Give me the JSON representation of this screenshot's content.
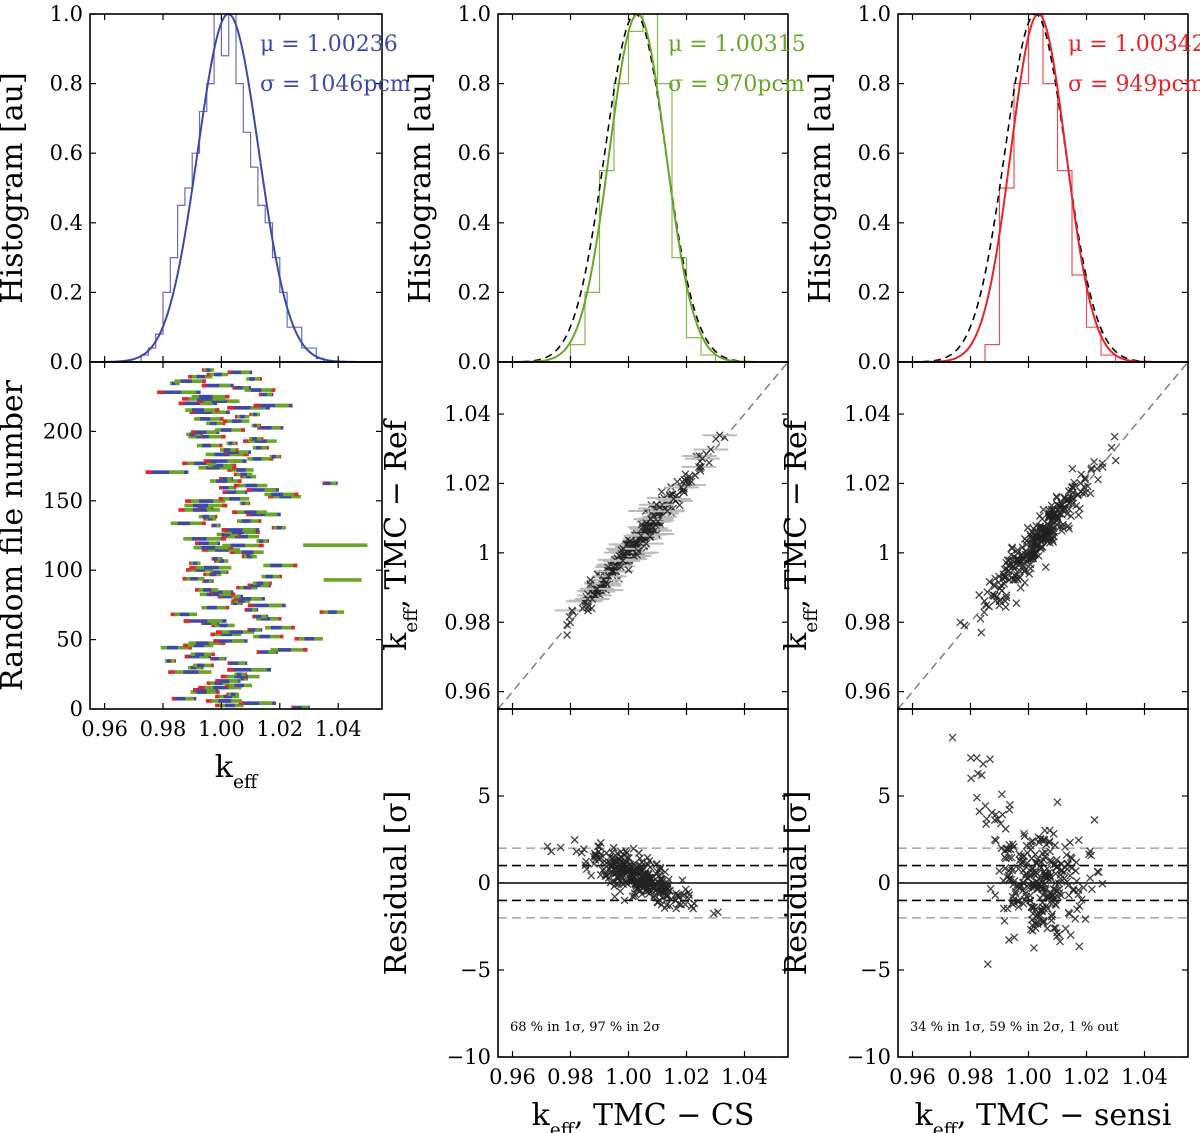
{
  "colors": {
    "blue": "#3f48a8",
    "green": "#6aa527",
    "red": "#e3242b",
    "black": "#000000",
    "grey": "#777777",
    "lightgrey": "#aaaaaa"
  },
  "chart_data": [
    {
      "id": "hist_ref",
      "type": "histogram+gaussian",
      "ylabel": "Histogram [au]",
      "ylim": [
        0,
        1
      ],
      "xlim": [
        0.955,
        1.055
      ],
      "yticks": [
        "0.0",
        "0.2",
        "0.4",
        "0.6",
        "0.8",
        "1.0"
      ],
      "mu_label": "μ = 1.00236",
      "sigma_label": "σ = 1046pcm",
      "mu": 1.00236,
      "sigma": 0.01046,
      "color": "blue",
      "reference_curve": false,
      "bin_edges": [
        0.9725,
        0.975,
        0.9775,
        0.98,
        0.9825,
        0.985,
        0.9875,
        0.99,
        0.9925,
        0.995,
        0.9975,
        1.0,
        1.0025,
        1.005,
        1.0075,
        1.01,
        1.0125,
        1.015,
        1.0175,
        1.02,
        1.0225,
        1.025,
        1.0275,
        1.03,
        1.0325,
        1.035
      ],
      "counts": [
        0.02,
        0.04,
        0.08,
        0.2,
        0.3,
        0.45,
        0.5,
        0.6,
        0.72,
        0.8,
        1.0,
        0.88,
        1.0,
        0.8,
        0.66,
        0.56,
        0.45,
        0.4,
        0.3,
        0.2,
        0.1,
        0.1,
        0.04,
        0.04,
        0.01
      ]
    },
    {
      "id": "hist_cs",
      "type": "histogram+gaussian",
      "ylabel": "Histogram [au]",
      "ylim": [
        0,
        1
      ],
      "xlim": [
        0.955,
        1.055
      ],
      "yticks": [
        "0.0",
        "0.2",
        "0.4",
        "0.6",
        "0.8",
        "1.0"
      ],
      "mu_label": "μ = 1.00315",
      "sigma_label": "σ = 970pcm",
      "mu": 1.00315,
      "sigma": 0.0097,
      "color": "green",
      "reference_curve": true,
      "bin_edges": [
        0.98,
        0.985,
        0.99,
        0.995,
        1.0,
        1.005,
        1.01,
        1.015,
        1.02,
        1.025,
        1.03,
        1.035
      ],
      "counts": [
        0.05,
        0.2,
        0.55,
        0.8,
        0.95,
        1.0,
        0.8,
        0.3,
        0.07,
        0.02,
        0.0
      ]
    },
    {
      "id": "hist_sensi",
      "type": "histogram+gaussian",
      "ylabel": "Histogram [au]",
      "ylim": [
        0,
        1
      ],
      "xlim": [
        0.955,
        1.055
      ],
      "yticks": [
        "0.0",
        "0.2",
        "0.4",
        "0.6",
        "0.8",
        "1.0"
      ],
      "mu_label": "μ = 1.00342",
      "sigma_label": "σ = 949pcm",
      "mu": 1.00342,
      "sigma": 0.00949,
      "color": "red",
      "reference_curve": true,
      "bin_edges": [
        0.985,
        0.99,
        0.995,
        1.0,
        1.005,
        1.01,
        1.015,
        1.02,
        1.025,
        1.03
      ],
      "counts": [
        0.05,
        0.5,
        0.8,
        1.0,
        0.8,
        0.55,
        0.25,
        0.1,
        0.02
      ]
    },
    {
      "id": "file_ranges",
      "type": "horizontal-segments",
      "xlabel": "keff",
      "ylabel": "Random file number",
      "xlim": [
        0.955,
        1.055
      ],
      "ylim": [
        0,
        250
      ],
      "xticks": [
        "0.96",
        "0.98",
        "1.00",
        "1.02",
        "1.04"
      ],
      "yticks": [
        "0",
        "50",
        "100",
        "150",
        "200"
      ],
      "series": [
        "blue",
        "green",
        "red"
      ]
    },
    {
      "id": "scatter_cs",
      "type": "scatter",
      "ylabel_prefix": "k",
      "ylabel_sub": "eff",
      "ylabel_rest": ",  TMC − Ref",
      "xlim": [
        0.955,
        1.055
      ],
      "ylim": [
        0.955,
        1.055
      ],
      "yticks": [
        "0.96",
        "0.98",
        "1",
        "1.02",
        "1.04"
      ],
      "slope": 1.0,
      "spread": 0.002,
      "diagonal": true
    },
    {
      "id": "scatter_sensi",
      "type": "scatter",
      "ylabel_prefix": "k",
      "ylabel_sub": "eff",
      "ylabel_rest": ",  TMC − Ref",
      "xlim": [
        0.955,
        1.055
      ],
      "ylim": [
        0.955,
        1.055
      ],
      "yticks": [
        "0.96",
        "0.98",
        "1",
        "1.02",
        "1.04"
      ],
      "slope": 1.0,
      "spread": 0.003,
      "diagonal": true
    },
    {
      "id": "resid_cs",
      "type": "scatter",
      "ylabel": "Residual [σ]",
      "xlim": [
        0.955,
        1.055
      ],
      "ylim": [
        -10,
        10
      ],
      "yticks": [
        "−10",
        "−5",
        "0",
        "5"
      ],
      "xticks": [
        "0.96",
        "0.98",
        "1.00",
        "1.02",
        "1.04"
      ],
      "xlabel_prefix": "k",
      "xlabel_sub": "eff",
      "xlabel_rest": ",  TMC − CS",
      "note": "68 % in 1σ,  97 % in 2σ"
    },
    {
      "id": "resid_sensi",
      "type": "scatter",
      "ylabel": "Residual [σ]",
      "xlim": [
        0.955,
        1.055
      ],
      "ylim": [
        -10,
        10
      ],
      "yticks": [
        "−10",
        "−5",
        "0",
        "5"
      ],
      "xticks": [
        "0.96",
        "0.98",
        "1.00",
        "1.02",
        "1.04"
      ],
      "xlabel_prefix": "k",
      "xlabel_sub": "eff",
      "xlabel_rest": ",  TMC − sensi",
      "note": "34 % in 1σ,  59 % in 2σ,  1 % out"
    }
  ]
}
